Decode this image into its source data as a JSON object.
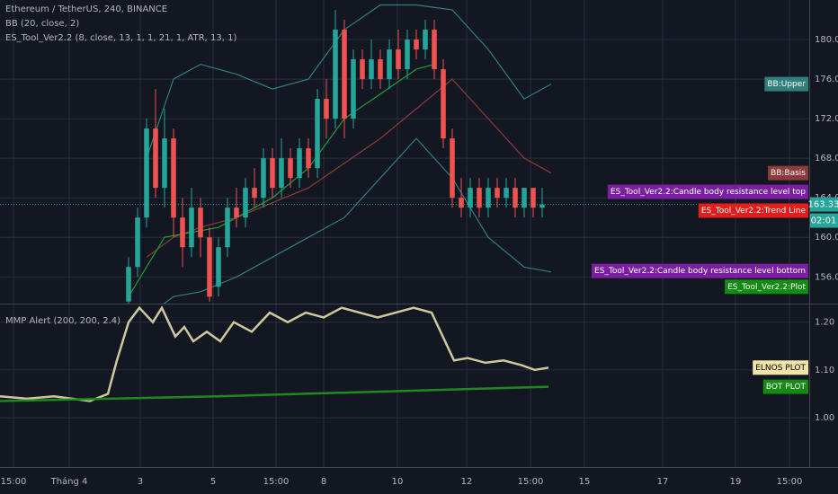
{
  "chart_data": [
    {
      "type": "candlestick",
      "title": "Ethereum / TetherUS, 240, BINANCE",
      "indicators": [
        "BB (20, close, 2)",
        "ES_Tool_Ver2.2 (8, close, 13, 1, 1, 21, 1, ATR, 13, 1)"
      ],
      "xlim": [
        -14.3,
        75.7
      ],
      "ylim": [
        153.3,
        184
      ],
      "yticks": [
        {
          "value": 156,
          "label": "156.00"
        },
        {
          "value": 160,
          "label": "160.00"
        },
        {
          "value": 164,
          "label": "164.00"
        },
        {
          "value": 168,
          "label": "168.00"
        },
        {
          "value": 172,
          "label": "172.00"
        },
        {
          "value": 176,
          "label": "176.00"
        },
        {
          "value": 180,
          "label": "180.00"
        }
      ],
      "up_color": "#26a69a",
      "down_color": "#ef5350",
      "x": [
        0,
        1,
        2,
        3,
        4,
        5,
        6,
        7,
        8,
        9,
        10,
        11,
        12,
        13,
        14,
        15,
        16,
        17,
        18,
        19,
        20,
        21,
        22,
        23,
        24,
        25,
        26,
        27,
        28,
        29,
        30,
        31,
        32,
        33,
        34,
        35,
        36,
        37,
        38,
        39,
        40,
        41,
        42,
        43,
        44,
        45,
        46
      ],
      "open": [
        153.5,
        157,
        162,
        171,
        165,
        170,
        162,
        159,
        163,
        160,
        155,
        159,
        163,
        162,
        165,
        164,
        168,
        165,
        168,
        166,
        169,
        167,
        174,
        172,
        181,
        172,
        178,
        176,
        178,
        176,
        179,
        177,
        180,
        179,
        181,
        177,
        170,
        164,
        163,
        165,
        163,
        165,
        164,
        165,
        163,
        165,
        163
      ],
      "high": [
        158,
        163,
        172,
        175,
        173,
        171,
        164,
        165,
        164,
        161,
        160,
        164,
        165,
        166,
        167,
        169,
        169,
        170,
        169,
        170,
        170,
        175,
        176,
        183,
        182,
        179,
        179,
        180,
        179,
        180,
        181,
        181,
        181,
        182,
        182,
        178,
        171,
        166,
        166,
        166,
        166,
        166,
        166,
        166,
        165,
        165,
        165
      ],
      "low": [
        153,
        156,
        161,
        164,
        163,
        160,
        157,
        158,
        158,
        153.5,
        154,
        158,
        161,
        161,
        163,
        163,
        164,
        164,
        165,
        165,
        166,
        166,
        170,
        171,
        170,
        171,
        175,
        175,
        175,
        175,
        176,
        176,
        178,
        178,
        176,
        169,
        163,
        162,
        162,
        162,
        162,
        163,
        163,
        162,
        162,
        162,
        162
      ],
      "close": [
        157,
        162,
        171,
        165,
        170,
        162,
        159,
        163,
        160,
        154,
        159,
        163,
        162,
        165,
        164,
        168,
        165,
        168,
        166,
        169,
        167,
        174,
        172,
        181,
        172,
        178,
        176,
        178,
        176,
        179,
        177,
        180,
        179,
        181,
        177,
        170,
        164,
        163,
        165,
        163,
        165,
        164,
        165,
        163,
        165,
        163,
        163.33
      ],
      "lines": [
        {
          "color": "#2f7f7c",
          "x": [
            2,
            5,
            8,
            12,
            16,
            20,
            24,
            28,
            32,
            36,
            40,
            44,
            47
          ],
          "values": [
            168,
            176,
            177.5,
            176.5,
            175,
            176,
            181,
            183.5,
            183.5,
            183,
            179,
            174,
            175.5
          ]
        },
        {
          "color": "#8c3a3a",
          "x": [
            2,
            5,
            8,
            12,
            16,
            20,
            24,
            28,
            32,
            36,
            40,
            44,
            47
          ],
          "values": [
            158,
            160,
            161,
            162,
            163.5,
            165,
            167.5,
            170,
            173,
            176,
            172,
            168,
            166.5
          ]
        },
        {
          "color": "#2f7f7c",
          "x": [
            2,
            5,
            8,
            12,
            16,
            20,
            24,
            28,
            32,
            36,
            40,
            44,
            47
          ],
          "values": [
            152,
            154,
            154.5,
            156,
            158,
            160,
            162,
            166,
            170,
            166,
            160,
            157,
            156.5
          ]
        },
        {
          "color": "#1f9a3a",
          "x": [
            0,
            4,
            10,
            16,
            20,
            24,
            28,
            32,
            34
          ],
          "values": [
            154,
            160,
            161,
            164,
            167,
            172,
            174.5,
            177,
            177.5
          ]
        }
      ],
      "last_price": 163.33,
      "countdown": "02:01",
      "tags": [
        {
          "text": "BB:Upper",
          "value": 175.5,
          "color": "#2f7f7c"
        },
        {
          "text": "BB:Basis",
          "value": 166.5,
          "color": "#8c3a3a"
        },
        {
          "text": "ES_Tool_Ver2.2:Candle body resistance level top",
          "value": 164.6,
          "color": "#7b1fa2"
        },
        {
          "text": "ES_Tool_Ver2.2:Trend Line",
          "value": 162.7,
          "color": "#e51c1c"
        },
        {
          "text": "ES_Tool_Ver2.2:Candle body resistance level bottom",
          "value": 156.6,
          "color": "#7b1fa2"
        },
        {
          "text": "ES_Tool_Ver2.2:Plot",
          "value": 155,
          "color": "#138a13"
        }
      ]
    },
    {
      "type": "line",
      "title": "MMP Alert (200, 200, 2.4)",
      "xlim": [
        -14.3,
        75.7
      ],
      "xticks": [
        {
          "value": -12.8,
          "label": "15:00"
        },
        {
          "value": -6.6,
          "label": "Tháng 4"
        },
        {
          "value": 1.3,
          "label": "3"
        },
        {
          "value": 9.4,
          "label": "5"
        },
        {
          "value": 16.4,
          "label": "15:00"
        },
        {
          "value": 21.7,
          "label": "8"
        },
        {
          "value": 29.9,
          "label": "10"
        },
        {
          "value": 37.6,
          "label": "12"
        },
        {
          "value": 44.7,
          "label": "15:00"
        },
        {
          "value": 50.7,
          "label": "15"
        },
        {
          "value": 59.4,
          "label": "17"
        },
        {
          "value": 67.5,
          "label": "19"
        },
        {
          "value": 73.5,
          "label": "15:00"
        }
      ],
      "ylim": [
        0.897,
        1.237
      ],
      "yticks": [
        {
          "value": 1.0,
          "label": "1.00"
        },
        {
          "value": 1.1,
          "label": "1.10"
        },
        {
          "value": 1.2,
          "label": "1.20"
        }
      ],
      "lines": [
        {
          "color": "#cfc89c",
          "x": [
            -14.3,
            -11.3,
            -8.3,
            -4.3,
            -2.3,
            -1.3,
            0,
            1.2,
            2.7,
            3.7,
            5.2,
            6.2,
            7.2,
            8.7,
            10.2,
            11.7,
            13.7,
            15.7,
            17.7,
            19.7,
            21.7,
            23.7,
            25.7,
            27.7,
            29.7,
            31.7,
            33.7,
            35.2,
            36.2,
            37.7,
            39.7,
            41.7,
            43.7,
            45.2,
            46.7
          ],
          "values": [
            1.045,
            1.04,
            1.045,
            1.035,
            1.05,
            1.12,
            1.2,
            1.23,
            1.2,
            1.23,
            1.17,
            1.19,
            1.16,
            1.18,
            1.16,
            1.2,
            1.18,
            1.22,
            1.2,
            1.22,
            1.21,
            1.23,
            1.22,
            1.21,
            1.22,
            1.23,
            1.22,
            1.16,
            1.12,
            1.125,
            1.115,
            1.12,
            1.11,
            1.1,
            1.105
          ]
        },
        {
          "color": "#1e8a1e",
          "x": [
            -14.3,
            10,
            46.7
          ],
          "values": [
            1.035,
            1.045,
            1.065
          ]
        }
      ],
      "tags": [
        {
          "text": "ELNOS PLOT",
          "value": 1.105,
          "color": "#f3e3a6",
          "text_color": "#000000"
        },
        {
          "text": "BOT PLOT",
          "value": 1.065,
          "color": "#138a13"
        }
      ]
    }
  ]
}
